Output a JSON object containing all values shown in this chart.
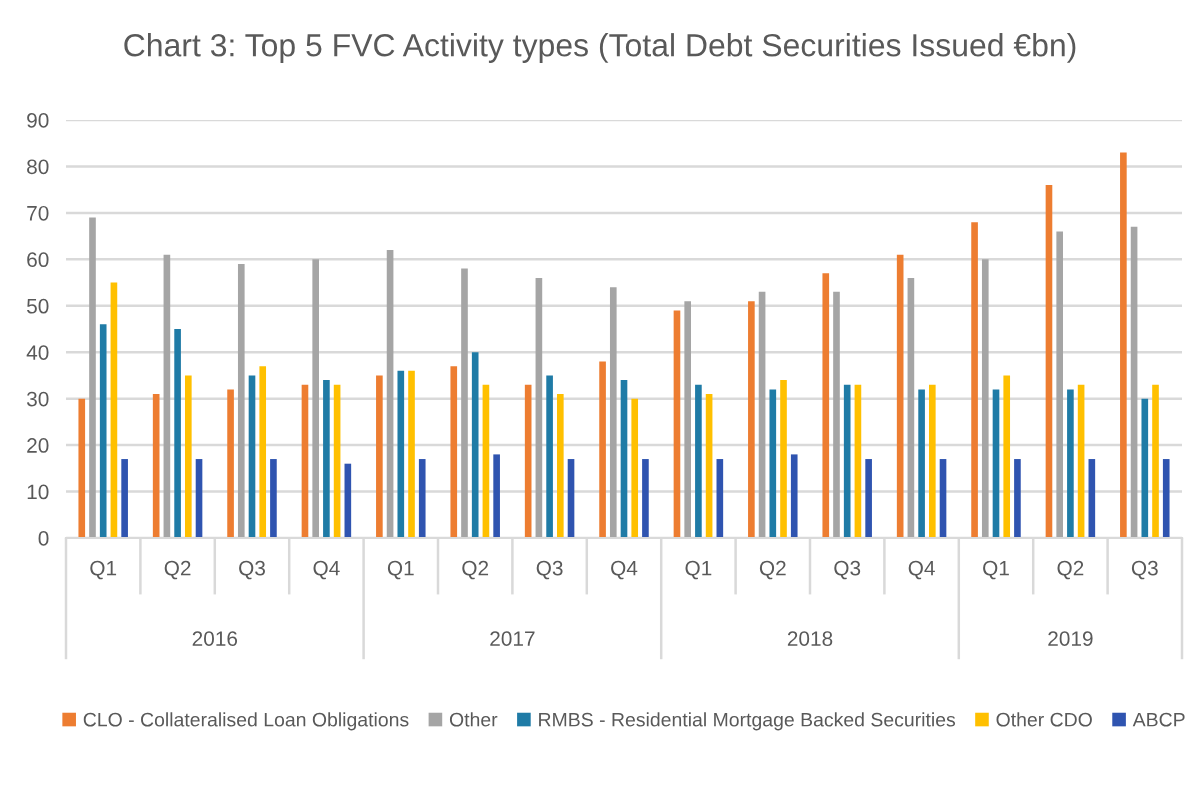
{
  "chart_data": {
    "type": "bar",
    "title": "Chart 3: Top 5 FVC Activity types (Total Debt Securities Issued €bn)",
    "categories": [
      "Q1",
      "Q2",
      "Q3",
      "Q4",
      "Q1",
      "Q2",
      "Q3",
      "Q4",
      "Q1",
      "Q2",
      "Q3",
      "Q4",
      "Q1",
      "Q2",
      "Q3"
    ],
    "annotations": [
      "2016",
      "2017",
      "2018",
      "2019"
    ],
    "series": [
      {
        "name": "CLO - Collateralised Loan Obligations",
        "color": "#ed7d31",
        "values": [
          30,
          31,
          32,
          33,
          35,
          37,
          33,
          38,
          49,
          51,
          57,
          61,
          68,
          76,
          83
        ]
      },
      {
        "name": "Other",
        "color": "#a5a5a5",
        "values": [
          69,
          61,
          59,
          60,
          62,
          58,
          56,
          54,
          51,
          53,
          53,
          56,
          60,
          66,
          67
        ]
      },
      {
        "name": "RMBS - Residential Mortgage Backed Securities",
        "color": "#1f7ba6",
        "values": [
          46,
          45,
          35,
          34,
          36,
          40,
          35,
          34,
          33,
          32,
          33,
          32,
          32,
          32,
          30
        ]
      },
      {
        "name": "Other CDO",
        "color": "#ffc000",
        "values": [
          55,
          35,
          37,
          33,
          36,
          33,
          31,
          30,
          31,
          34,
          33,
          33,
          35,
          33,
          33
        ]
      },
      {
        "name": "ABCP",
        "color": "#2f54b0",
        "values": [
          17,
          17,
          17,
          16,
          17,
          18,
          17,
          17,
          17,
          18,
          17,
          17,
          17,
          17,
          17
        ]
      }
    ],
    "ylim": [
      0,
      90
    ],
    "yticks": [
      0,
      10,
      20,
      30,
      40,
      50,
      60,
      70,
      80,
      90
    ],
    "grid": "y",
    "legend": "bottom"
  }
}
